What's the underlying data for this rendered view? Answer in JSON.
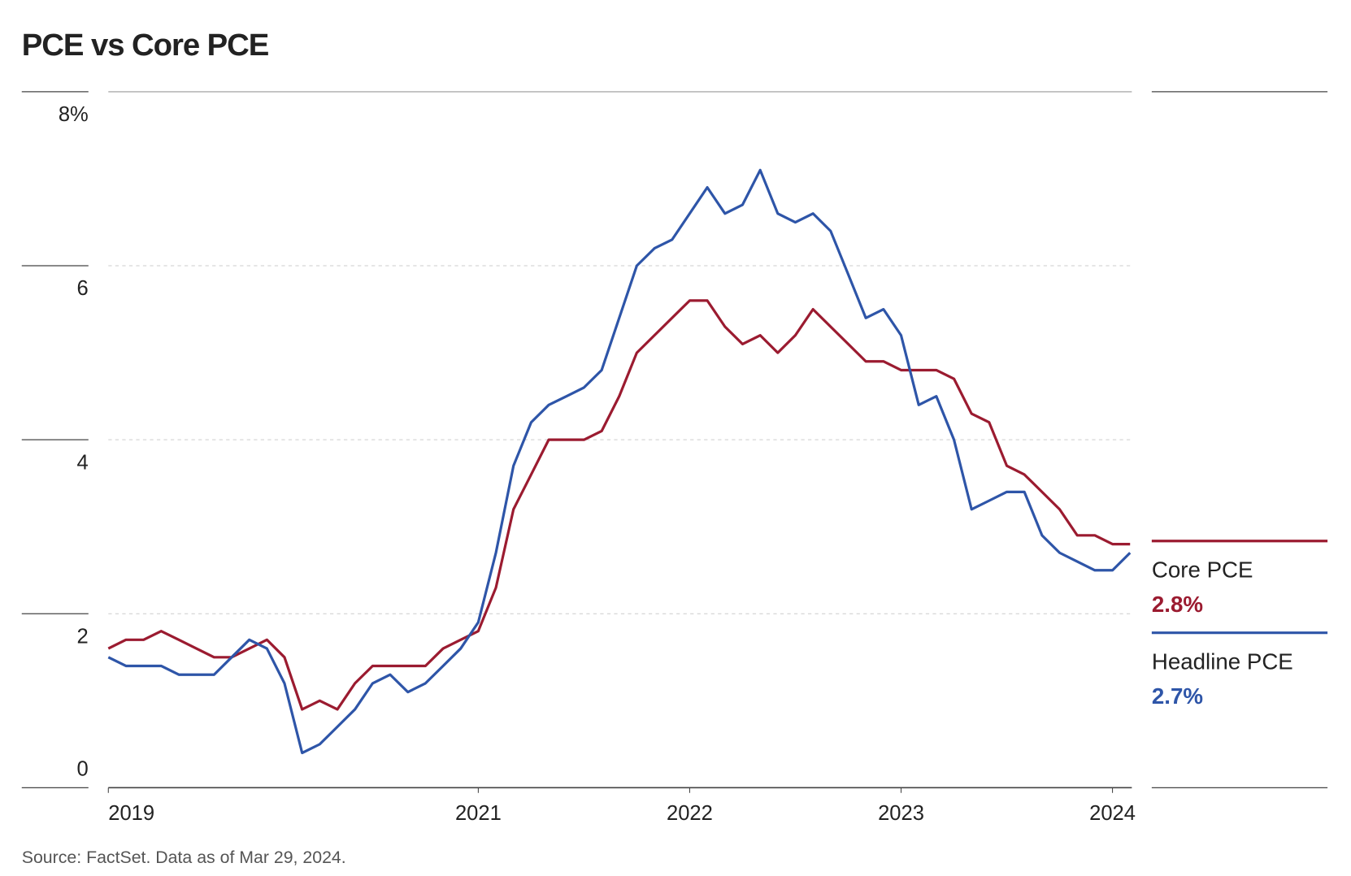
{
  "chart_data": {
    "type": "line",
    "title": "PCE vs Core PCE",
    "source": "Source: FactSet. Data as of Mar 29, 2024.",
    "categories": [
      "2019",
      null,
      null,
      null,
      null,
      null,
      null,
      null,
      null,
      null,
      null,
      null,
      null,
      null,
      null,
      null,
      null,
      null,
      null,
      null,
      null,
      "2021",
      null,
      null,
      null,
      null,
      null,
      null,
      null,
      null,
      null,
      null,
      null,
      "2022",
      null,
      null,
      null,
      null,
      null,
      null,
      null,
      null,
      null,
      null,
      null,
      "2023",
      null,
      null,
      null,
      null,
      null,
      null,
      null,
      null,
      null,
      null,
      null,
      "2024",
      null
    ],
    "series": [
      {
        "name": "Core PCE",
        "color": "#9b1b30",
        "last_value_label": "2.8%",
        "values": [
          1.6,
          1.7,
          1.7,
          1.8,
          1.7,
          1.6,
          1.5,
          1.5,
          1.6,
          1.7,
          1.5,
          0.9,
          1.0,
          0.9,
          1.2,
          1.4,
          1.4,
          1.4,
          1.4,
          1.6,
          1.7,
          1.8,
          2.3,
          3.2,
          3.6,
          4.0,
          4.0,
          4.0,
          4.1,
          4.5,
          5.0,
          5.2,
          5.4,
          5.6,
          5.6,
          5.3,
          5.1,
          5.2,
          5.0,
          5.2,
          5.5,
          5.3,
          5.1,
          4.9,
          4.9,
          4.8,
          4.8,
          4.8,
          4.7,
          4.3,
          4.2,
          3.7,
          3.6,
          3.4,
          3.2,
          2.9,
          2.9,
          2.8,
          2.8
        ]
      },
      {
        "name": "Headline PCE",
        "color": "#2e55a8",
        "last_value_label": "2.7%",
        "values": [
          1.5,
          1.4,
          1.4,
          1.4,
          1.3,
          1.3,
          1.3,
          1.5,
          1.7,
          1.6,
          1.2,
          0.4,
          0.5,
          0.7,
          0.9,
          1.2,
          1.3,
          1.1,
          1.2,
          1.4,
          1.6,
          1.9,
          2.7,
          3.7,
          4.2,
          4.4,
          4.5,
          4.6,
          4.8,
          5.4,
          6.0,
          6.2,
          6.3,
          6.6,
          6.9,
          6.6,
          6.7,
          7.1,
          6.6,
          6.5,
          6.6,
          6.4,
          5.9,
          5.4,
          5.5,
          5.2,
          4.4,
          4.5,
          4.0,
          3.2,
          3.3,
          3.4,
          3.4,
          2.9,
          2.7,
          2.6,
          2.5,
          2.5,
          2.7
        ]
      }
    ],
    "ylim": [
      0,
      8
    ],
    "yticks": [
      0,
      2,
      4,
      6,
      {
        "value": 8,
        "label": "8%"
      }
    ],
    "grid": true
  }
}
